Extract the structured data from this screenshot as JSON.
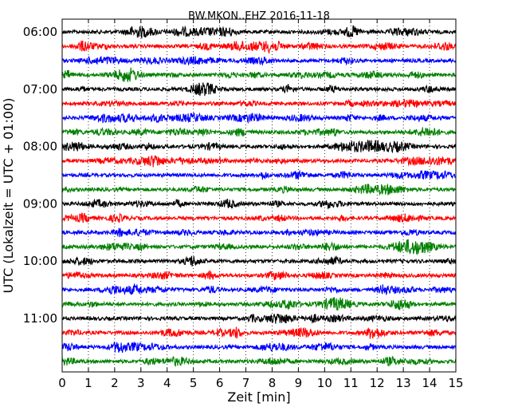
{
  "chart_data": {
    "type": "line",
    "title": "BW.MKON..EHZ 2016-11-18",
    "xlabel": "Zeit  [min]",
    "ylabel": "UTC (Lokalzeit = UTC + 01:00)",
    "xlim": [
      0,
      15
    ],
    "x_ticks": [
      "0",
      "1",
      "2",
      "3",
      "4",
      "5",
      "6",
      "7",
      "8",
      "9",
      "10",
      "11",
      "12",
      "13",
      "14",
      "15"
    ],
    "y_ticks": [
      "06:00",
      "07:00",
      "08:00",
      "09:00",
      "10:00",
      "11:00"
    ],
    "grid": "vertical dotted at each minute",
    "trace_interval_minutes": 15,
    "series": [
      {
        "start": "06:00",
        "color": "#000000"
      },
      {
        "start": "06:15",
        "color": "#ff0000"
      },
      {
        "start": "06:30",
        "color": "#0000ff"
      },
      {
        "start": "06:45",
        "color": "#008000"
      },
      {
        "start": "07:00",
        "color": "#000000"
      },
      {
        "start": "07:15",
        "color": "#ff0000"
      },
      {
        "start": "07:30",
        "color": "#0000ff"
      },
      {
        "start": "07:45",
        "color": "#008000"
      },
      {
        "start": "08:00",
        "color": "#000000"
      },
      {
        "start": "08:15",
        "color": "#ff0000"
      },
      {
        "start": "08:30",
        "color": "#0000ff"
      },
      {
        "start": "08:45",
        "color": "#008000"
      },
      {
        "start": "09:00",
        "color": "#000000"
      },
      {
        "start": "09:15",
        "color": "#ff0000"
      },
      {
        "start": "09:30",
        "color": "#0000ff"
      },
      {
        "start": "09:45",
        "color": "#008000"
      },
      {
        "start": "10:00",
        "color": "#000000"
      },
      {
        "start": "10:15",
        "color": "#ff0000"
      },
      {
        "start": "10:30",
        "color": "#0000ff"
      },
      {
        "start": "10:45",
        "color": "#008000"
      },
      {
        "start": "11:00",
        "color": "#000000"
      },
      {
        "start": "11:15",
        "color": "#ff0000"
      },
      {
        "start": "11:30",
        "color": "#0000ff"
      },
      {
        "start": "11:45",
        "color": "#008000"
      }
    ]
  }
}
